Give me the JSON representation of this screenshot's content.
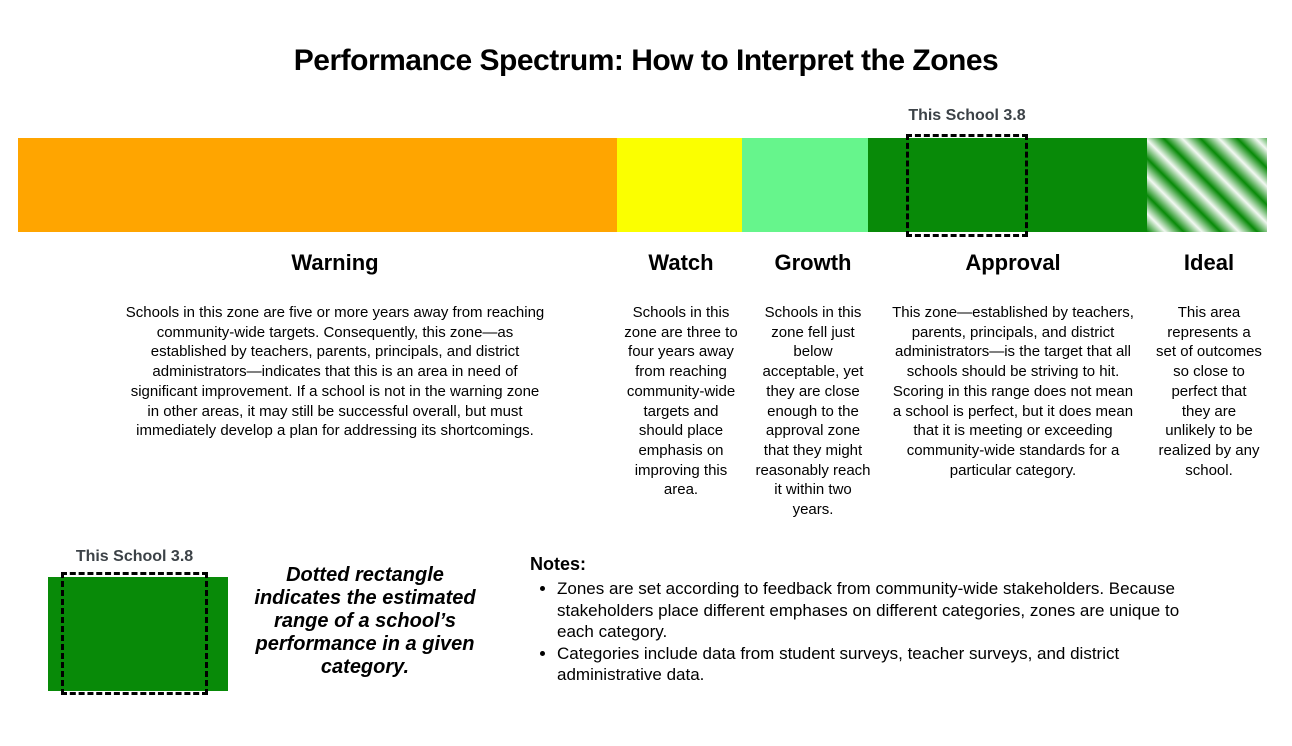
{
  "title": "Performance Spectrum: How to Interpret the Zones",
  "marker": {
    "label": "This School 3.8",
    "score": "3.8",
    "label_color": "#3C4247"
  },
  "zones": [
    {
      "name": "Warning",
      "color": "#FFA500",
      "description": "Schools in this zone are five or more years away from reaching community-wide targets. Consequently, this zone—as established by teachers, parents, principals, and district administrators—indicates that this is an area in need of significant improvement. If a school is not in the warning zone in other areas, it may still be successful overall, but must immediately develop a plan for addressing its shortcomings."
    },
    {
      "name": "Watch",
      "color": "#FBFF00",
      "description": "Schools in this zone are three to four years away from reaching community-wide targets and should place emphasis on improving this area."
    },
    {
      "name": "Growth",
      "color": "#66F58C",
      "description": "Schools in this zone fell just below acceptable, yet they are close enough to the approval zone that they might reasonably reach it within two years."
    },
    {
      "name": "Approval",
      "color": "#088A08",
      "description": "This zone—established by teachers, parents, principals, and district administrators—is the target that all schools should be striving to hit. Scoring in this range does not mean a school is perfect, but it does mean that it is meeting or exceeding community-wide standards for a particular category."
    },
    {
      "name": "Ideal",
      "color": "#088A08",
      "pattern": "diagonal-stripes",
      "stripe_color": "#F2F8F2",
      "description": "This area represents a set of outcomes so close to perfect that they are unlikely to be realized by any school."
    }
  ],
  "legend": {
    "marker_label": "This School 3.8",
    "description": "Dotted rectangle indicates the estimated range of a school’s performance in a given category."
  },
  "notes": {
    "heading": "Notes:",
    "items": [
      "Zones are set according to feedback from community-wide stakeholders. Because stakeholders place different emphases on different categories, zones are unique to each category.",
      "Categories include data from student surveys, teacher surveys, and district administrative data."
    ]
  }
}
